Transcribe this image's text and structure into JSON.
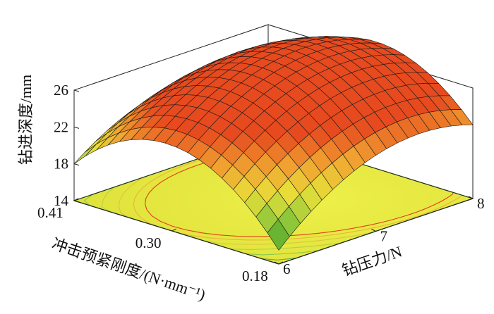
{
  "chart_data": {
    "type": "surface3d",
    "z_axis": {
      "label": "钻进深度/mm",
      "range": [
        14,
        26
      ],
      "ticks": [
        "14",
        "18",
        "22",
        "26"
      ]
    },
    "x_axis": {
      "label": "钻压力/N",
      "range": [
        6,
        8
      ],
      "ticks": [
        "6",
        "7",
        "8"
      ]
    },
    "y_axis": {
      "label": "冲击预紧刚度/(N·mm⁻¹)",
      "range": [
        0.18,
        0.41
      ],
      "ticks": [
        "0.18",
        "0.30",
        "0.41"
      ]
    },
    "surface": {
      "model": "quadratic",
      "peak": {
        "force": 7.5,
        "stiffness": 0.265,
        "depth": 24.6
      },
      "corners": [
        {
          "force": 6,
          "stiffness": 0.18,
          "depth": 15.5
        },
        {
          "force": 8,
          "stiffness": 0.18,
          "depth": 22.0
        },
        {
          "force": 6,
          "stiffness": 0.41,
          "depth": 18.0
        },
        {
          "force": 8,
          "stiffness": 0.41,
          "depth": 20.5
        }
      ]
    },
    "floor_contour": {
      "shown": true,
      "fill_color": "#e6ea3c"
    },
    "colormap": [
      "#3a9b22",
      "#8cc63a",
      "#e8e03a",
      "#f0a030",
      "#e64a1e"
    ],
    "grid": false
  }
}
